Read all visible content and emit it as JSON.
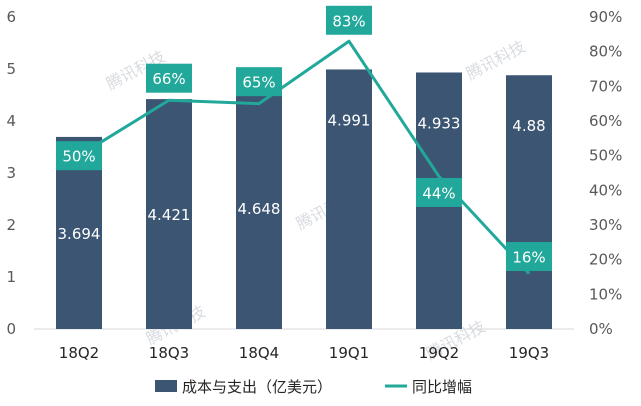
{
  "chart_data": {
    "type": "bar+line",
    "categories": [
      "18Q2",
      "18Q3",
      "18Q4",
      "19Q1",
      "19Q2",
      "19Q3"
    ],
    "series": [
      {
        "name": "成本与支出（亿美元）",
        "type": "bar",
        "axis": "left",
        "values": [
          3.694,
          4.421,
          4.648,
          4.991,
          4.933,
          4.88
        ],
        "labels": [
          "3.694",
          "4.421",
          "4.648",
          "4.991",
          "4.933",
          "4.88"
        ]
      },
      {
        "name": "同比增幅",
        "type": "line",
        "axis": "right",
        "values": [
          50,
          66,
          65,
          83,
          44,
          16
        ],
        "labels": [
          "50%",
          "66%",
          "65%",
          "83%",
          "44%",
          "16%"
        ]
      }
    ],
    "left_axis": {
      "ylim": [
        0,
        6
      ],
      "ticks": [
        "0",
        "1",
        "2",
        "3",
        "4",
        "5",
        "6"
      ]
    },
    "right_axis": {
      "ylim": [
        0,
        90
      ],
      "ticks": [
        "0%",
        "10%",
        "20%",
        "30%",
        "40%",
        "50%",
        "60%",
        "70%",
        "80%",
        "90%"
      ]
    },
    "legend": {
      "position": "bottom",
      "bar_label": "成本与支出（亿美元）",
      "line_label": "同比增幅"
    },
    "watermark": "腾讯科技"
  },
  "colors": {
    "bar": "#3c5572",
    "line": "#21a89a",
    "label_box": "#21a89a"
  }
}
